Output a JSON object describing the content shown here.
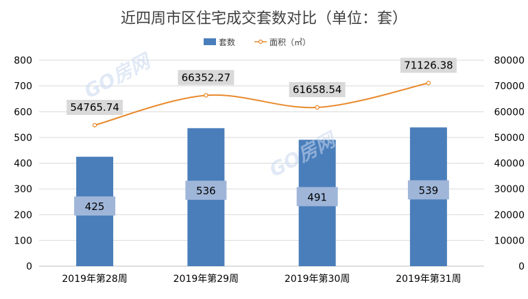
{
  "chart_data": {
    "type": "bar",
    "title": "近四周市区住宅成交套数对比（单位：套）",
    "categories": [
      "2019年第28周",
      "2019年第29周",
      "2019年第30周",
      "2019年第31周"
    ],
    "series": [
      {
        "name": "套数",
        "type": "bar",
        "axis": "left",
        "color": "#4a7ebb",
        "values": [
          425,
          536,
          491,
          539
        ]
      },
      {
        "name": "面积（㎡）",
        "type": "line",
        "axis": "right",
        "color": "#e8892b",
        "values": [
          54765.74,
          66352.27,
          61658.54,
          71126.38
        ]
      }
    ],
    "y_left": {
      "range": [
        0,
        800
      ],
      "ticks": [
        "0",
        "100",
        "200",
        "300",
        "400",
        "500",
        "600",
        "700",
        "800"
      ]
    },
    "y_right": {
      "range": [
        0,
        80000
      ],
      "ticks": [
        "0",
        "10000",
        "20000",
        "30000",
        "40000",
        "50000",
        "60000",
        "70000",
        "80000"
      ]
    },
    "bar_labels": [
      "425",
      "536",
      "491",
      "539"
    ],
    "line_labels": [
      "54765.74",
      "66352.27",
      "61658.54",
      "71126.38"
    ],
    "legend_position": "top-center",
    "grid": true
  },
  "watermark": "GO房网"
}
